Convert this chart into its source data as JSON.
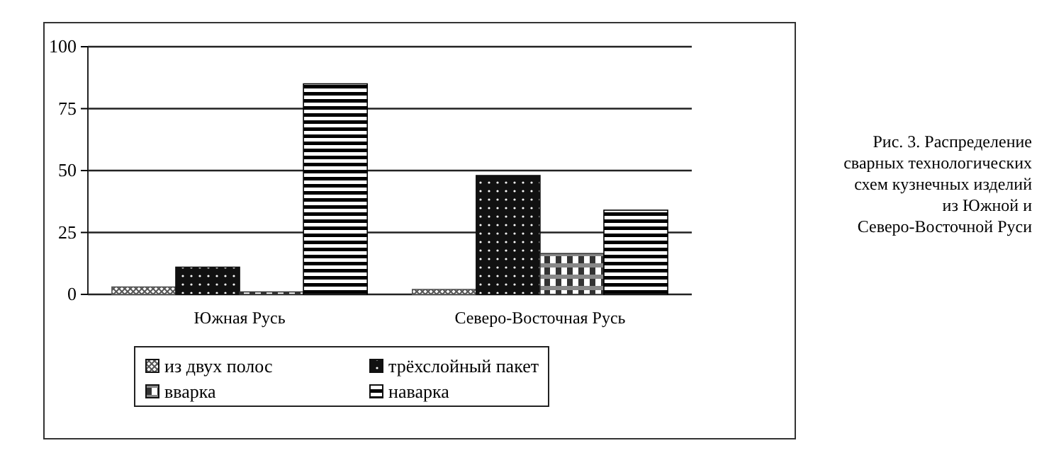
{
  "chart_data": {
    "type": "bar",
    "categories": [
      "Южная Русь",
      "Северо-Восточная Русь"
    ],
    "series": [
      {
        "name": "из двух полос",
        "color": "#555555",
        "values": [
          3,
          2
        ]
      },
      {
        "name": "трёхслойный пакет",
        "color": "#111111",
        "values": [
          11,
          48
        ]
      },
      {
        "name": "вварка",
        "color": "#333333",
        "values": [
          1,
          16.5
        ]
      },
      {
        "name": "наварка",
        "color": "#000000",
        "values": [
          85,
          34
        ]
      }
    ],
    "ylim": [
      0,
      100
    ],
    "yticks": [
      0,
      25,
      50,
      75,
      100
    ],
    "grid": "y",
    "legend": "bottom",
    "annotations": [
      "Рис. 3. Распределение сварных технологических схем кузнечных изделий из Южной и Северо-Восточной Руси"
    ]
  }
}
